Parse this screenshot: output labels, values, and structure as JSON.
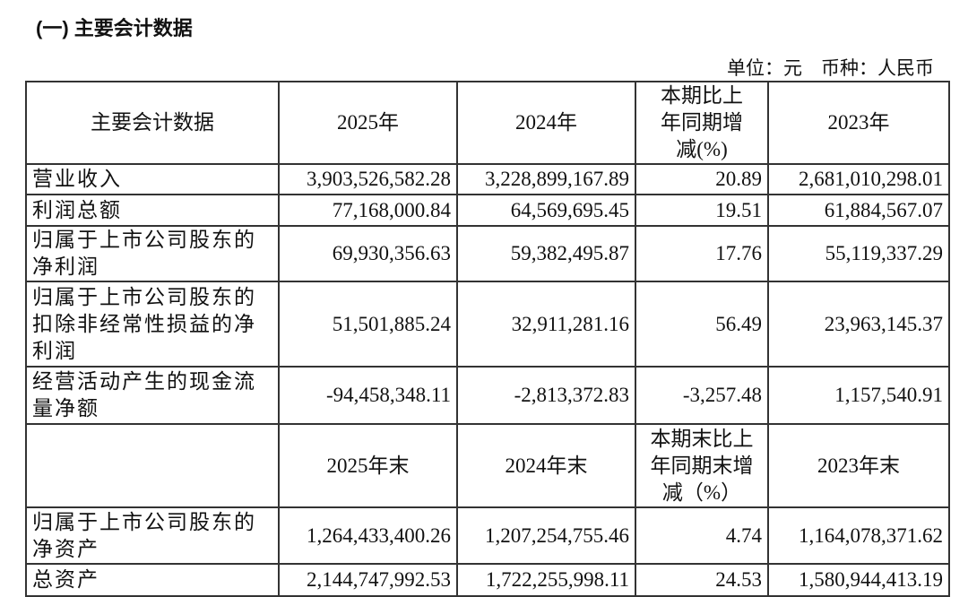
{
  "section_title": "(一) 主要会计数据",
  "unit_note": "单位：元　币种：人民币",
  "header": [
    "主要会计数据",
    "2025年",
    "2024年",
    "本期比上年同期增减(%)",
    "2023年"
  ],
  "rows": [
    [
      "营业收入",
      "3,903,526,582.28",
      "3,228,899,167.89",
      "20.89",
      "2,681,010,298.01"
    ],
    [
      "利润总额",
      "77,168,000.84",
      "64,569,695.45",
      "19.51",
      "61,884,567.07"
    ],
    [
      "归属于上市公司股东的净利润",
      "69,930,356.63",
      "59,382,495.87",
      "17.76",
      "55,119,337.29"
    ],
    [
      "归属于上市公司股东的扣除非经常性损益的净利润",
      "51,501,885.24",
      "32,911,281.16",
      "56.49",
      "23,963,145.37"
    ],
    [
      "经营活动产生的现金流量净额",
      "-94,458,348.11",
      "-2,813,372.83",
      "-3,257.48",
      "1,157,540.91"
    ]
  ],
  "header2": [
    "",
    "2025年末",
    "2024年末",
    "本期末比上年同期末增减（%）",
    "2023年末"
  ],
  "rows2": [
    [
      "归属于上市公司股东的净资产",
      "1,264,433,400.26",
      "1,207,254,755.46",
      "4.74",
      "1,164,078,371.62"
    ],
    [
      "总资产",
      "2,144,747,992.53",
      "1,722,255,998.11",
      "24.53",
      "1,580,944,413.19"
    ]
  ]
}
